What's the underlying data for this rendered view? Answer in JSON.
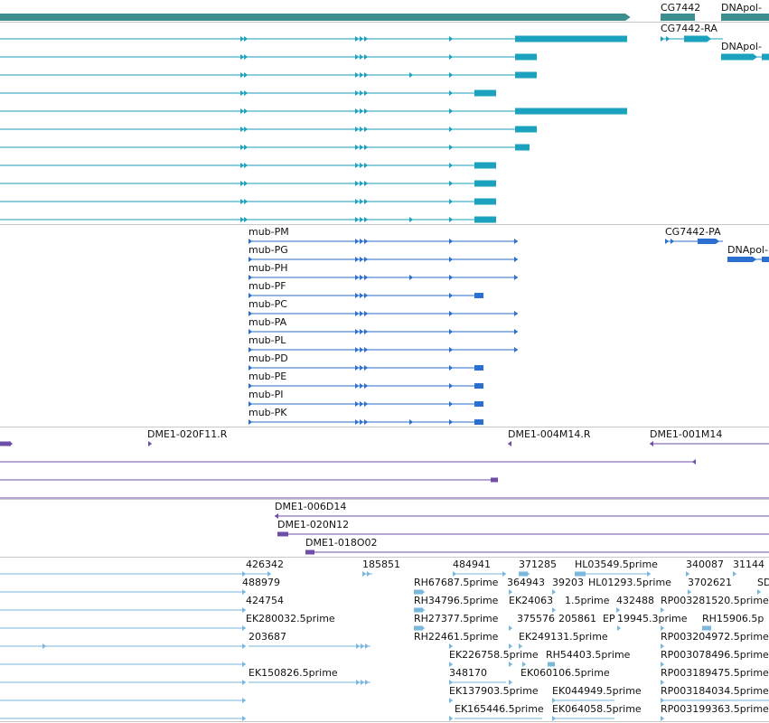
{
  "colors": {
    "gene": "#3d8f8f",
    "transcript": "#1aa2bf",
    "protein": "#2b6fd0",
    "clone": "#6e4ea8",
    "est": "#7ab8dc",
    "separator": "#c8c8c8"
  },
  "genes": {
    "cg7442": "CG7442",
    "dnapol": "DNApol-"
  },
  "transcripts": {
    "cg7442_ra": "CG7442-RA",
    "dnapol": "DNApol-"
  },
  "proteins": {
    "labels": [
      "mub-PM",
      "mub-PG",
      "mub-PH",
      "mub-PF",
      "mub-PC",
      "mub-PA",
      "mub-PL",
      "mub-PD",
      "mub-PE",
      "mub-PI",
      "mub-PK"
    ],
    "cg7442_pa": "CG7442-PA",
    "dnapol": "DNApol-"
  },
  "clones": {
    "top": [
      "DME1-020F11.R",
      "DME1-004M14.R",
      "DME1-001M14"
    ],
    "lower": [
      "DME1-006D14",
      "DME1-020N12",
      "DME1-018O02"
    ]
  },
  "ests": {
    "col1": [
      "426342",
      "488979",
      "424754",
      "EK280032.5prime",
      "203687",
      "EK150826.5prime"
    ],
    "col2": [
      "185851",
      "484941",
      "RH67687.5prime",
      "RH34796.5prime",
      "RH27377.5prime",
      "RH22461.5prime",
      "EK226758.5prime",
      "348170",
      "EK137903.5prime",
      "EK165446.5prime"
    ],
    "col3": [
      "371285",
      "364943",
      "39203",
      "EK24063",
      "1.5prime",
      "375576",
      "205861",
      "EP",
      "EK249131.5prime",
      "RH54403.5prime",
      "EK060106.5prime",
      "EK044949.5prime",
      "EK064058.5prime"
    ],
    "col4": [
      "HL03549.5prime",
      "HL01293.5prime",
      "432488",
      "19945.3prime",
      "RP003281520.5prime",
      "RP003204972.5prime",
      "RP003078496.5prime",
      "RP003189475.5prime",
      "RP003184034.5prime",
      "RP003199363.5prime"
    ],
    "col5": [
      "340087",
      "31144",
      "3702621",
      "SD",
      "RH15906.5p"
    ]
  }
}
